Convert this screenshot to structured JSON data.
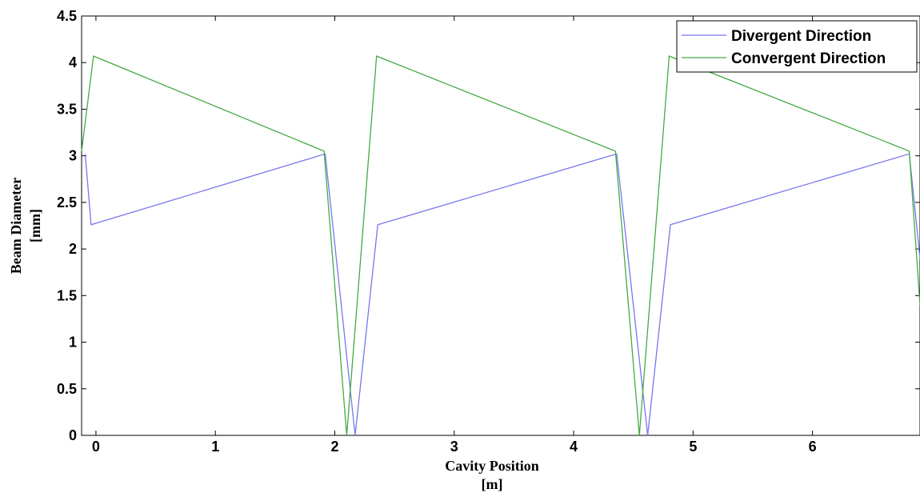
{
  "chart_data": {
    "type": "line",
    "xlabel": [
      "Cavity Position",
      "[m]"
    ],
    "ylabel": [
      "Beam Diameter",
      "[mm]"
    ],
    "xlim": [
      -0.12,
      6.9
    ],
    "ylim": [
      0,
      4.5
    ],
    "xticks": [
      0,
      1,
      2,
      3,
      4,
      5,
      6
    ],
    "yticks": [
      0,
      0.5,
      1,
      1.5,
      2,
      2.5,
      3,
      3.5,
      4,
      4.5
    ],
    "grid": false,
    "legend_position": "top-right",
    "series": [
      {
        "name": "Divergent Direction",
        "color": "#7777ee",
        "x": [
          -0.09,
          -0.04,
          1.92,
          2.17,
          2.36,
          4.36,
          4.62,
          4.81,
          6.81,
          6.9
        ],
        "y": [
          3.02,
          2.26,
          3.02,
          0,
          2.26,
          3.02,
          0,
          2.26,
          3.02,
          1.9
        ]
      },
      {
        "name": "Convergent Direction",
        "color": "#44aa44",
        "x": [
          -0.12,
          -0.02,
          1.91,
          2.1,
          2.35,
          4.35,
          4.55,
          4.8,
          6.81,
          6.9
        ],
        "y": [
          3.05,
          4.07,
          3.05,
          0,
          4.07,
          3.05,
          0,
          4.07,
          3.05,
          1.4
        ]
      }
    ]
  }
}
